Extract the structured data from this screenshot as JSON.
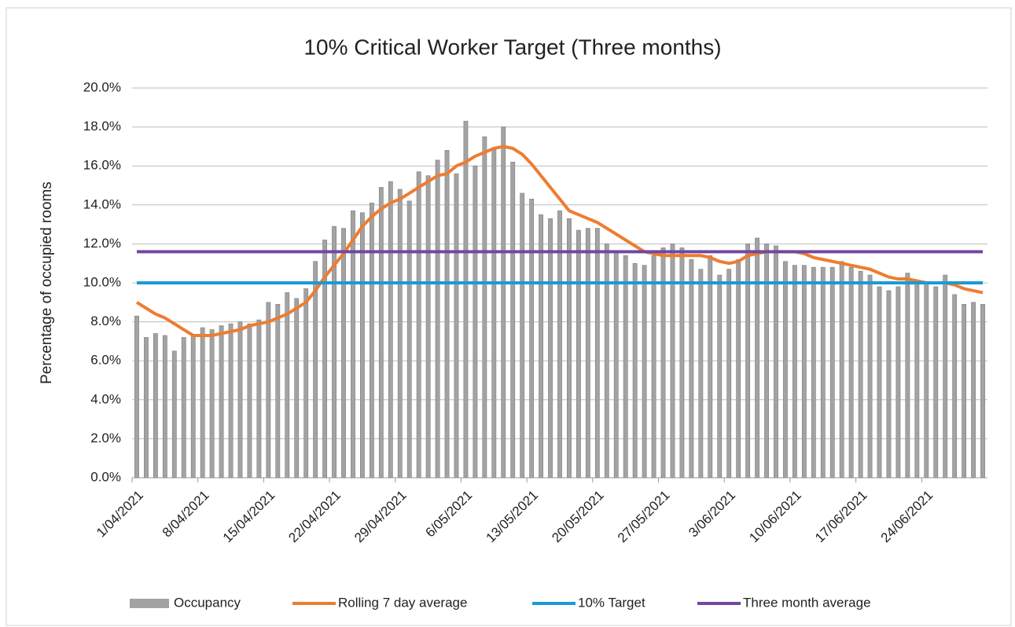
{
  "chart_data": {
    "type": "bar",
    "title": "10% Critical Worker Target (Three months)",
    "y_label": "Percentage of occupied rooms",
    "categories": [
      "1/04/2021",
      null,
      null,
      null,
      null,
      null,
      null,
      "8/04/2021",
      null,
      null,
      null,
      null,
      null,
      null,
      "15/04/2021",
      null,
      null,
      null,
      null,
      null,
      null,
      "22/04/2021",
      null,
      null,
      null,
      null,
      null,
      null,
      "29/04/2021",
      null,
      null,
      null,
      null,
      null,
      null,
      "6/05/2021",
      null,
      null,
      null,
      null,
      null,
      null,
      "13/05/2021",
      null,
      null,
      null,
      null,
      null,
      null,
      "20/05/2021",
      null,
      null,
      null,
      null,
      null,
      null,
      "27/05/2021",
      null,
      null,
      null,
      null,
      null,
      null,
      "3/06/2021",
      null,
      null,
      null,
      null,
      null,
      null,
      "10/06/2021",
      null,
      null,
      null,
      null,
      null,
      null,
      "17/06/2021",
      null,
      null,
      null,
      null,
      null,
      null,
      "24/06/2021",
      null,
      null,
      null,
      null,
      null,
      null
    ],
    "ylim": [
      0,
      20
    ],
    "yticks": [
      {
        "value": 0,
        "label": "0.0%"
      },
      {
        "value": 2,
        "label": "2.0%"
      },
      {
        "value": 4,
        "label": "4.0%"
      },
      {
        "value": 6,
        "label": "6.0%"
      },
      {
        "value": 8,
        "label": "8.0%"
      },
      {
        "value": 10,
        "label": "10.0%"
      },
      {
        "value": 12,
        "label": "12.0%"
      },
      {
        "value": 14,
        "label": "14.0%"
      },
      {
        "value": 16,
        "label": "16.0%"
      },
      {
        "value": 18,
        "label": "18.0%"
      },
      {
        "value": 20,
        "label": "20.0%"
      }
    ],
    "grid": true,
    "legend": "bottom",
    "series": [
      {
        "name": "Occupancy",
        "type": "bar",
        "color": "#a3a3a3",
        "values": [
          8.3,
          7.2,
          7.4,
          7.3,
          6.5,
          7.2,
          7.3,
          7.7,
          7.6,
          7.8,
          7.9,
          8.0,
          7.9,
          8.1,
          9.0,
          8.9,
          9.5,
          9.2,
          9.7,
          11.1,
          12.2,
          12.9,
          12.8,
          13.7,
          13.6,
          14.1,
          14.9,
          15.2,
          14.8,
          14.2,
          15.7,
          15.5,
          16.3,
          16.8,
          15.6,
          18.3,
          16.0,
          17.5,
          16.9,
          18.0,
          16.2,
          14.6,
          14.3,
          13.5,
          13.3,
          13.7,
          13.3,
          12.7,
          12.8,
          12.8,
          12.0,
          11.6,
          11.4,
          11.0,
          10.9,
          11.4,
          11.8,
          12.0,
          11.8,
          11.2,
          10.7,
          11.4,
          10.4,
          10.7,
          11.2,
          12.0,
          12.3,
          12.0,
          11.9,
          11.1,
          10.9,
          10.9,
          10.8,
          10.8,
          10.8,
          11.1,
          10.8,
          10.6,
          10.4,
          9.8,
          9.6,
          9.8,
          10.5,
          10.1,
          10.0,
          9.8,
          10.4,
          9.4,
          8.9,
          9.0,
          8.9
        ]
      },
      {
        "name": "Rolling 7 day average",
        "type": "line",
        "color": "#ed7d31",
        "values": [
          9.0,
          8.7,
          8.4,
          8.2,
          7.9,
          7.6,
          7.3,
          7.3,
          7.3,
          7.4,
          7.5,
          7.6,
          7.8,
          7.9,
          8.0,
          8.2,
          8.4,
          8.7,
          9.0,
          9.6,
          10.3,
          10.9,
          11.5,
          12.2,
          12.9,
          13.4,
          13.8,
          14.1,
          14.3,
          14.6,
          14.9,
          15.2,
          15.5,
          15.6,
          16.0,
          16.2,
          16.5,
          16.7,
          16.9,
          17.0,
          16.9,
          16.6,
          16.1,
          15.5,
          14.9,
          14.3,
          13.7,
          13.5,
          13.3,
          13.1,
          12.8,
          12.5,
          12.2,
          11.9,
          11.6,
          11.5,
          11.4,
          11.4,
          11.4,
          11.4,
          11.4,
          11.3,
          11.1,
          11.0,
          11.1,
          11.4,
          11.5,
          11.6,
          11.6,
          11.6,
          11.6,
          11.5,
          11.3,
          11.2,
          11.1,
          11.0,
          10.9,
          10.8,
          10.7,
          10.5,
          10.3,
          10.2,
          10.2,
          10.1,
          10.0,
          10.0,
          10.0,
          9.9,
          9.7,
          9.6,
          9.5
        ]
      },
      {
        "name": "10% Target",
        "type": "line",
        "color": "#1a9ad6",
        "values": [
          10,
          10,
          10,
          10,
          10,
          10,
          10,
          10,
          10,
          10,
          10,
          10,
          10,
          10,
          10,
          10,
          10,
          10,
          10,
          10,
          10,
          10,
          10,
          10,
          10,
          10,
          10,
          10,
          10,
          10,
          10,
          10,
          10,
          10,
          10,
          10,
          10,
          10,
          10,
          10,
          10,
          10,
          10,
          10,
          10,
          10,
          10,
          10,
          10,
          10,
          10,
          10,
          10,
          10,
          10,
          10,
          10,
          10,
          10,
          10,
          10,
          10,
          10,
          10,
          10,
          10,
          10,
          10,
          10,
          10,
          10,
          10,
          10,
          10,
          10,
          10,
          10,
          10,
          10,
          10,
          10,
          10,
          10,
          10,
          10,
          10,
          10,
          10,
          10,
          10,
          10
        ]
      },
      {
        "name": "Three month average",
        "type": "line",
        "color": "#7048a0",
        "values": [
          11.6,
          11.6,
          11.6,
          11.6,
          11.6,
          11.6,
          11.6,
          11.6,
          11.6,
          11.6,
          11.6,
          11.6,
          11.6,
          11.6,
          11.6,
          11.6,
          11.6,
          11.6,
          11.6,
          11.6,
          11.6,
          11.6,
          11.6,
          11.6,
          11.6,
          11.6,
          11.6,
          11.6,
          11.6,
          11.6,
          11.6,
          11.6,
          11.6,
          11.6,
          11.6,
          11.6,
          11.6,
          11.6,
          11.6,
          11.6,
          11.6,
          11.6,
          11.6,
          11.6,
          11.6,
          11.6,
          11.6,
          11.6,
          11.6,
          11.6,
          11.6,
          11.6,
          11.6,
          11.6,
          11.6,
          11.6,
          11.6,
          11.6,
          11.6,
          11.6,
          11.6,
          11.6,
          11.6,
          11.6,
          11.6,
          11.6,
          11.6,
          11.6,
          11.6,
          11.6,
          11.6,
          11.6,
          11.6,
          11.6,
          11.6,
          11.6,
          11.6,
          11.6,
          11.6,
          11.6,
          11.6,
          11.6,
          11.6,
          11.6,
          11.6,
          11.6,
          11.6,
          11.6,
          11.6,
          11.6,
          11.6
        ]
      }
    ]
  }
}
